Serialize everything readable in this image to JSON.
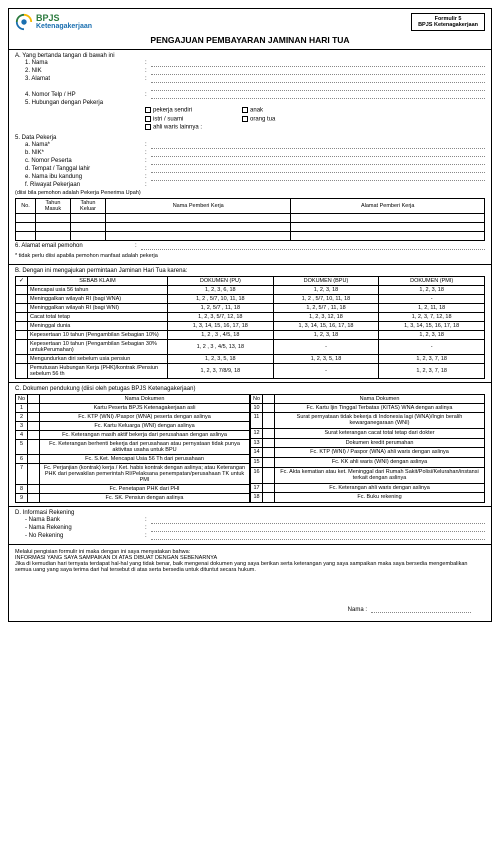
{
  "logo": {
    "line1": "BPJS",
    "line2": "Ketenagakerjaan"
  },
  "formBox": {
    "line1": "Formulir 5",
    "line2": "BPJS Ketenagakerjaan"
  },
  "title": "PENGAJUAN PEMBAYARAN JAMINAN HARI TUA",
  "secA": {
    "heading": "A. Yang bertanda tangan di bawah ini",
    "i1": "1. Nama",
    "i2": "2. NIK",
    "i3": "3. Alamat",
    "i4": "4. Nomor Telp / HP",
    "i5": "5. Hubungan dengan Pekerja",
    "rel": [
      "pekerja sendiri",
      "istri / suami",
      "ahli waris lainnya :",
      "anak",
      "orang tua"
    ],
    "dp": "5. Data Pekerja",
    "a": "a. Nama*",
    "b": "b. NIK*",
    "c": "c. Nomor Peserta",
    "d": "d. Tempat / Tanggal lahir",
    "e": "e. Nama ibu kandung",
    "f": "f. Riwayat Pekerjaan",
    "fnote": "(diisi bila pemohon adalah Pekerja Penerima Upah)",
    "th": {
      "no": "No.",
      "tm": "Tahun Masuk",
      "tk": "Tahun Keluar",
      "npk": "Nama Pemberi Kerja",
      "apk": "Alamat Pemberi Kerja"
    },
    "i6": "6. Alamat email pemohon",
    "note": "* tidak perlu diisi apabila pemohon manfaat adalah pekerja"
  },
  "secB": {
    "heading": "B. Dengan ini mengajukan permintaan Jaminan Hari Tua karena:",
    "th": {
      "chk": "✓",
      "sebab": "SEBAB KLAIM",
      "pu": "DOKUMEN (PU)",
      "bpu": "DOKUMEN (BPU)",
      "pmi": "DOKUMEN (PMI)"
    },
    "rows": [
      {
        "s": "Mencapai usia 56 tahun",
        "pu": "1, 2, 3, 6, 18",
        "bpu": "1, 2, 3, 18",
        "pmi": "1, 2, 3, 18"
      },
      {
        "s": "Meninggalkan wilayah RI (bagi WNA)",
        "pu": "1, 2 , 5/7, 10, 11, 18",
        "bpu": "1, 2 , 5/7, 10, 11, 18",
        "pmi": "-"
      },
      {
        "s": "Meninggalkan wilayah RI (bagi WNI)",
        "pu": "1, 2, 5/7 , 11, 18",
        "bpu": "1, 2, 5/7 , 11, 18",
        "pmi": "1, 2, 11, 18"
      },
      {
        "s": "Cacat total tetap",
        "pu": "1, 2, 3, 5/7, 12, 18",
        "bpu": "1, 2, 3, 12, 18",
        "pmi": "1, 2, 3, 7, 12, 18"
      },
      {
        "s": "Meninggal dunia",
        "pu": "1, 3, 14, 15, 16, 17, 18",
        "bpu": "1, 3, 14, 15, 16, 17, 18",
        "pmi": "1, 3, 14, 15, 16, 17, 18"
      },
      {
        "s": "Kepesertaan 10 tahun (Pengambilan Sebagian 10%)",
        "pu": "1, 2 , 3 , 4/5, 18",
        "bpu": "1, 2, 3, 18",
        "pmi": "1, 2, 3, 18"
      },
      {
        "s": "Kepesertaan 10 tahun (Pengambilan Sebagian 30% untukPerumahan)",
        "pu": "1, 2 , 3 , 4/5, 13, 18",
        "bpu": "-",
        "pmi": "-"
      },
      {
        "s": "Mengundurkan diri sebelum usia pensiun",
        "pu": "1, 2, 3, 5, 18",
        "bpu": "1, 2, 3, 5, 18",
        "pmi": "1, 2, 3, 7, 18"
      },
      {
        "s": "Pemutusan Hubungan Kerja (PHK)/kontrak /Pensiun sebelum 56 th",
        "pu": "1, 2, 3, 7/8/9, 18",
        "bpu": "-",
        "pmi": "1, 2, 3, 7, 18"
      }
    ]
  },
  "secC": {
    "heading": "C. Dokumen pendukung (diisi oleh petugas BPJS Ketenagakerjaan)",
    "th": {
      "no": "No",
      "nd": "Nama Dokumen"
    },
    "left": [
      {
        "n": "1",
        "d": "Kartu Peserta BPJS Ketenagakerjaan asli"
      },
      {
        "n": "2",
        "d": "Fc. KTP (WNI) /Paspor (WNA) peserta dengan aslinya"
      },
      {
        "n": "3",
        "d": "Fc. Kartu Keluarga (WNI) dengan aslinya"
      },
      {
        "n": "4",
        "d": "Fc. Keterangan masih aktif bekerja dari perusahaan dengan aslinya"
      },
      {
        "n": "5",
        "d": "Fc. Keterangan berhenti bekerja dari perusahaan atau pernyataan tidak punya aktivitas usaha untuk BPU"
      },
      {
        "n": "6",
        "d": "Fc. S.Ket. Mencapai Usia 56 Th dari perusahaan"
      },
      {
        "n": "7",
        "d": "Fc. Perjanjian (kontrak) kerja / Ket. habis kontrak dengan aslinya; atau Keterangan PHK dari perwakilan pemerintah RI/Pelaksana penempatan/perusahaan TK untuk PMI"
      },
      {
        "n": "8",
        "d": "Fc. Penetapan PHK dari PHI"
      },
      {
        "n": "9",
        "d": "Fc. SK. Pensiun dengan aslinya"
      }
    ],
    "right": [
      {
        "n": "10",
        "d": "Fc. Kartu Ijin Tinggal Terbatas (KITAS) WNA dengan aslinya"
      },
      {
        "n": "11",
        "d": "Surat pernyataan tidak bekerja di Indonesia lagi (WNA)/Ingin beralih kewarganegaraan (WNI)"
      },
      {
        "n": "12",
        "d": "Surat keterangan cacat total tetap dari dokter"
      },
      {
        "n": "13",
        "d": "Dokumen kredit perumahan"
      },
      {
        "n": "14",
        "d": "Fc. KTP (WNI) / Paspor (WNA) ahli waris dengan aslinya"
      },
      {
        "n": "15",
        "d": "Fc. KK ahli waris (WNI) dengan aslinya"
      },
      {
        "n": "16",
        "d": "Fc. Akta kematian atau ket. Meninggal dari Rumah Sakit/Polisi/Kelurahan/instansi terkait dengan aslinya"
      },
      {
        "n": "17",
        "d": "Fc. Keterangan ahli waris dengan aslinya"
      },
      {
        "n": "18",
        "d": "Fc. Buku rekening"
      }
    ]
  },
  "secD": {
    "heading": "D. Informasi Rekening",
    "i1": "- Nama Bank",
    "i2": "- Nama Rekening",
    "i3": "- No Rekening"
  },
  "decl": {
    "p1": "Melalui pengisian formulir ini maka dengan ini saya menyatakan bahwa:",
    "p2": "INFORMASI YANG SAYA SAMPAIKAN DI ATAS DIBUAT DENGAN SEBENARNYA",
    "p3": "Jika di kemudian hari ternyata terdapat hal-hal yang tidak benar, baik mengenai dokumen yang saya berikan serta keterangan yang saya sampaikan maka saya bersedia mengembalikan semua uang yang saya terima dari hal tersebut di atas serta bersedia untuk dituntut secara hukum."
  },
  "sig": {
    "nama": "Nama :"
  }
}
